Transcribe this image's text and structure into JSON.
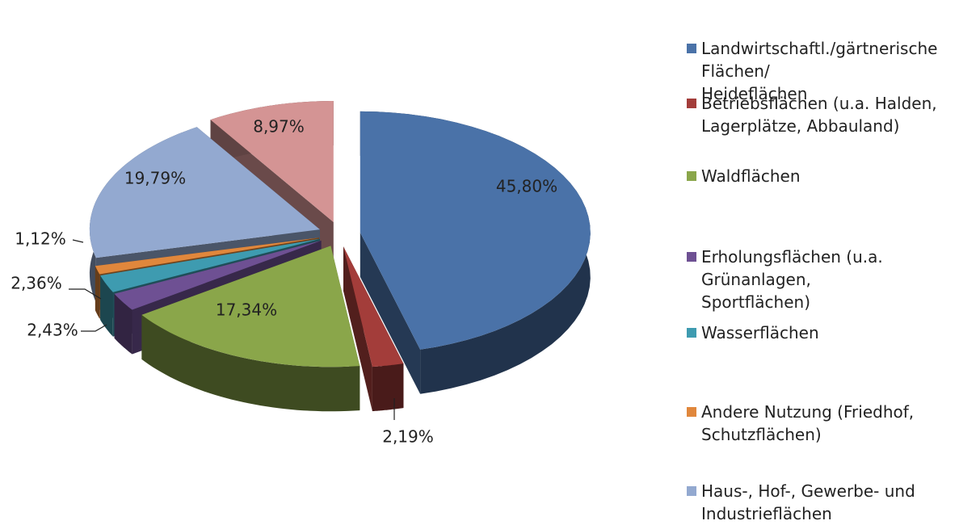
{
  "chart_data": {
    "type": "pie",
    "categories": [
      "Landwirtschaftl./gärtnerische\nFlächen/\nHeideflächen",
      "Betriebsflächen (u.a. Halden,\nLagerplätze, Abbauland)",
      "Waldflächen",
      "Erholungsflächen (u.a.\nGrünanlagen,\nSportflächen)",
      "Wasserflächen",
      "Andere Nutzung (Friedhof,\nSchutzflächen)",
      "Haus-, Hof-, Gewerbe- und\nIndustrieflächen",
      null
    ],
    "values": [
      45.8,
      2.19,
      17.34,
      2.43,
      2.36,
      1.12,
      19.79,
      8.97
    ],
    "value_labels": [
      "45,80%",
      "2,19%",
      "17,34%",
      "2,43%",
      "2,36%",
      "1,12%",
      "19,79%",
      "8,97%"
    ],
    "colors": [
      "#4a72a8",
      "#a33d3a",
      "#8aa64a",
      "#6e5093",
      "#3e9bb0",
      "#e0873c",
      "#93a9d0",
      "#d49494"
    ],
    "legend": "right"
  }
}
